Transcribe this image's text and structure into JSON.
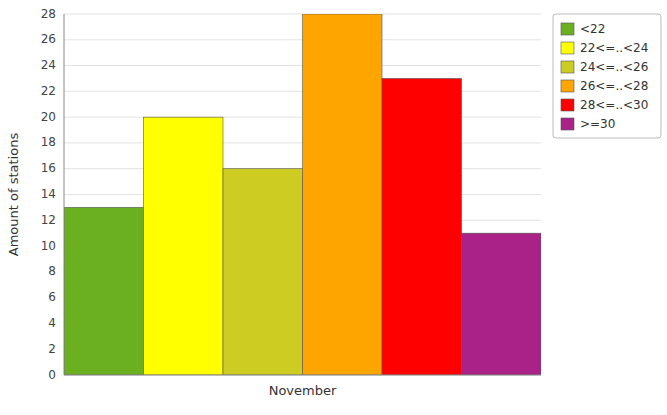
{
  "chart_data": {
    "type": "bar",
    "categories": [
      "November"
    ],
    "series": [
      {
        "name": "<22",
        "color": "#6ab020",
        "values": [
          13
        ]
      },
      {
        "name": "22<=..<24",
        "color": "#ffff00",
        "values": [
          20
        ]
      },
      {
        "name": "24<=..<26",
        "color": "#cccc22",
        "values": [
          16
        ]
      },
      {
        "name": "26<=..<28",
        "color": "#ffa500",
        "values": [
          28
        ]
      },
      {
        "name": "28<=..<30",
        "color": "#ff0000",
        "values": [
          23
        ]
      },
      {
        "name": ">=30",
        "color": "#aa2288",
        "values": [
          11
        ]
      }
    ],
    "ylabel": "Amount of stations",
    "ylim": [
      0,
      28
    ],
    "yticks": [
      0,
      2,
      4,
      6,
      8,
      10,
      12,
      14,
      16,
      18,
      20,
      22,
      24,
      26,
      28
    ],
    "grid": true,
    "legend": "upper right"
  }
}
